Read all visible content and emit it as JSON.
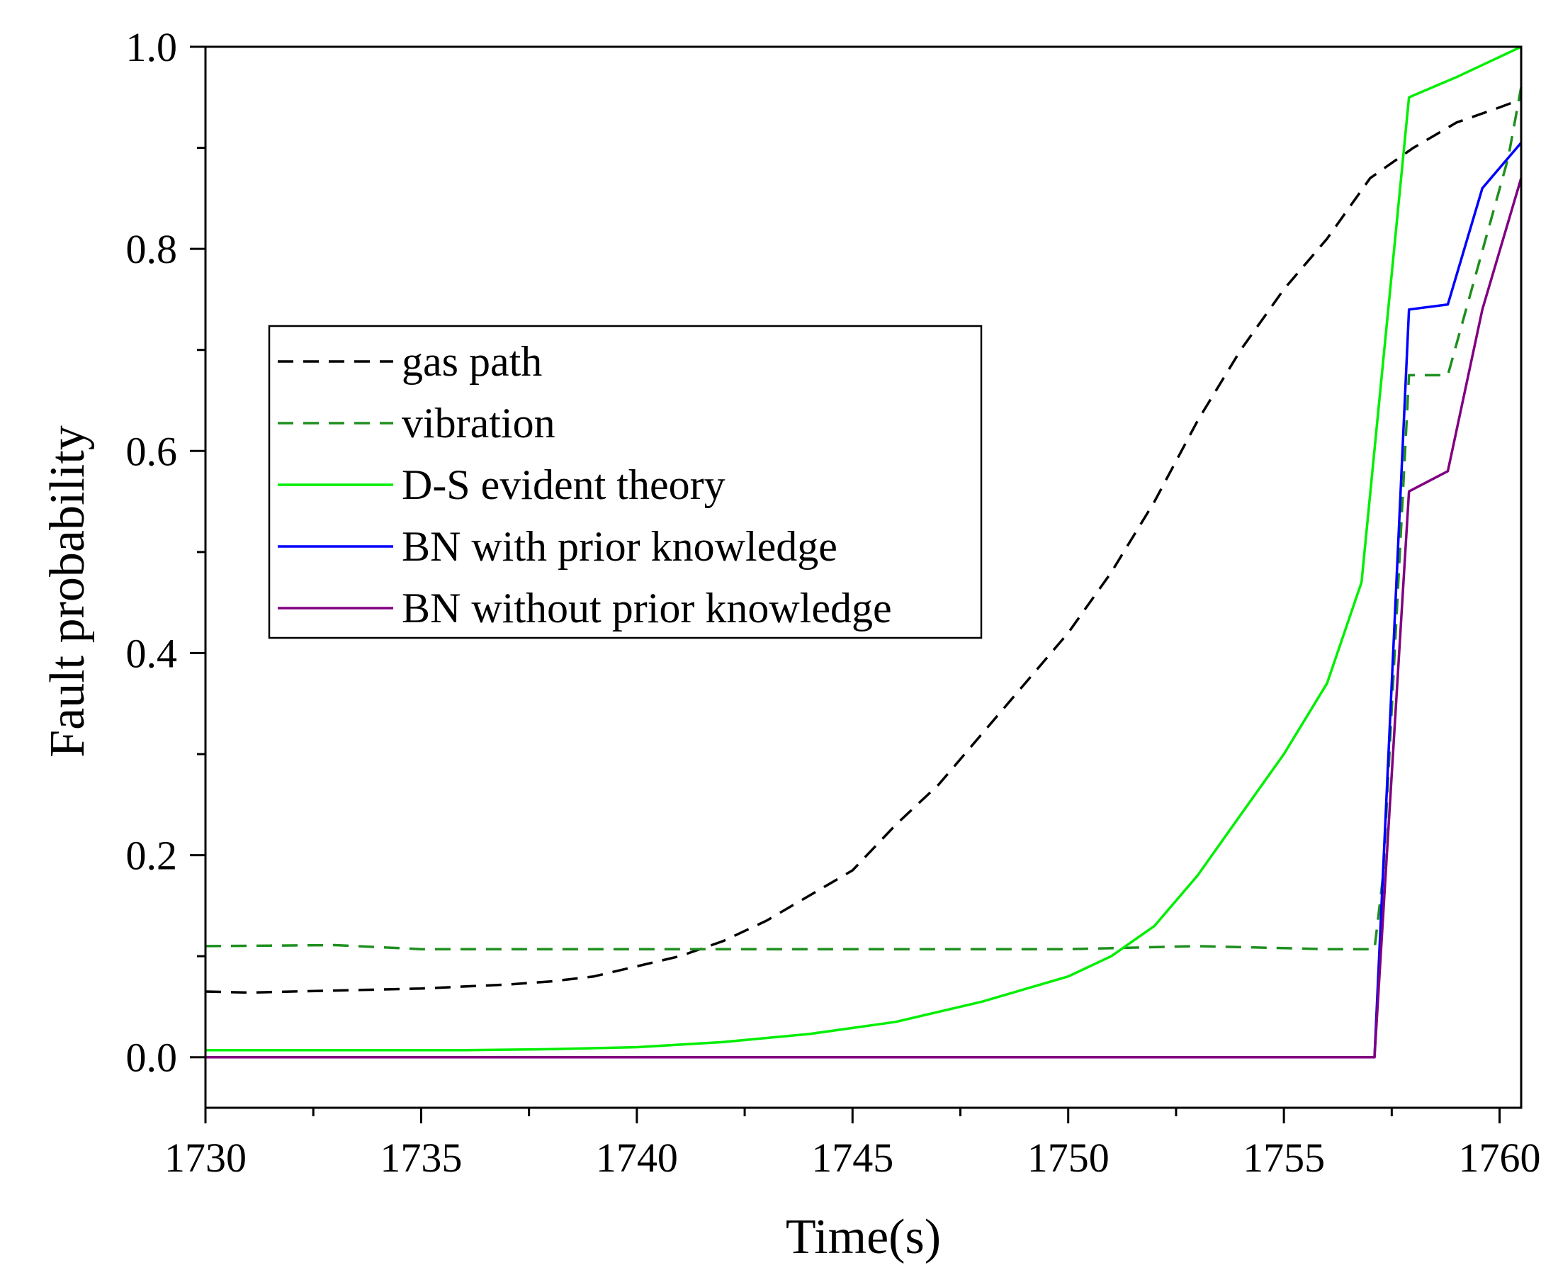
{
  "chart_data": {
    "type": "line",
    "title": "",
    "xlabel": "Time(s)",
    "ylabel": "Fault probability",
    "xlim": [
      1730,
      1760.5
    ],
    "ylim": [
      -0.05,
      1.0
    ],
    "xticks": [
      1730,
      1735,
      1740,
      1745,
      1750,
      1755,
      1760
    ],
    "xtick_labels": [
      "1730",
      "1735",
      "1740",
      "1745",
      "1750",
      "1755",
      "1760"
    ],
    "yticks": [
      0.0,
      0.2,
      0.4,
      0.6,
      0.8,
      1.0
    ],
    "ytick_labels": [
      "0.0",
      "0.2",
      "0.4",
      "0.6",
      "0.8",
      "1.0"
    ],
    "grid": false,
    "legend_position": "center-left",
    "series": [
      {
        "name": "gas path",
        "color": "#000000",
        "style": "dashed",
        "x": [
          1730,
          1731,
          1732,
          1733,
          1734,
          1735,
          1736,
          1737,
          1738,
          1739,
          1740,
          1741,
          1742,
          1743,
          1744,
          1745,
          1746,
          1747,
          1748,
          1749,
          1750,
          1751,
          1752,
          1753,
          1754,
          1755,
          1756,
          1757,
          1758,
          1759,
          1760,
          1760.5
        ],
        "y": [
          0.065,
          0.064,
          0.065,
          0.066,
          0.067,
          0.068,
          0.07,
          0.072,
          0.075,
          0.08,
          0.09,
          0.1,
          0.115,
          0.135,
          0.16,
          0.185,
          0.23,
          0.27,
          0.32,
          0.37,
          0.42,
          0.48,
          0.55,
          0.63,
          0.7,
          0.76,
          0.81,
          0.87,
          0.9,
          0.925,
          0.94,
          0.948
        ]
      },
      {
        "name": "vibration",
        "color": "#1e8f1e",
        "style": "dashed",
        "x": [
          1730,
          1733,
          1735,
          1740,
          1745,
          1750,
          1753,
          1756,
          1757.1,
          1757.3,
          1757.9,
          1758.8,
          1760.2,
          1760.5
        ],
        "y": [
          0.11,
          0.111,
          0.107,
          0.107,
          0.107,
          0.107,
          0.11,
          0.107,
          0.107,
          0.18,
          0.675,
          0.675,
          0.89,
          0.96
        ]
      },
      {
        "name": "D-S evident theory",
        "color": "#00ee00",
        "style": "solid",
        "x": [
          1730,
          1732,
          1734,
          1736,
          1738,
          1740,
          1742,
          1744,
          1746,
          1748,
          1750,
          1751,
          1752,
          1753,
          1754,
          1755,
          1756,
          1756.8,
          1757.9,
          1759,
          1760,
          1760.5
        ],
        "y": [
          0.007,
          0.007,
          0.007,
          0.007,
          0.008,
          0.01,
          0.015,
          0.023,
          0.035,
          0.055,
          0.08,
          0.1,
          0.13,
          0.18,
          0.24,
          0.3,
          0.37,
          0.47,
          0.95,
          0.97,
          0.99,
          1.0
        ]
      },
      {
        "name": "BN with prior knowledge",
        "color": "#0000ff",
        "style": "solid",
        "x": [
          1730,
          1757.1,
          1757.9,
          1758.8,
          1759.6,
          1760.5
        ],
        "y": [
          0.0,
          0.0,
          0.74,
          0.745,
          0.86,
          0.905
        ]
      },
      {
        "name": "BN without prior knowledge",
        "color": "#800080",
        "style": "solid",
        "x": [
          1730,
          1757.1,
          1757.9,
          1758.8,
          1759.6,
          1760.5
        ],
        "y": [
          0.0,
          0.0,
          0.56,
          0.58,
          0.74,
          0.87
        ]
      }
    ]
  }
}
